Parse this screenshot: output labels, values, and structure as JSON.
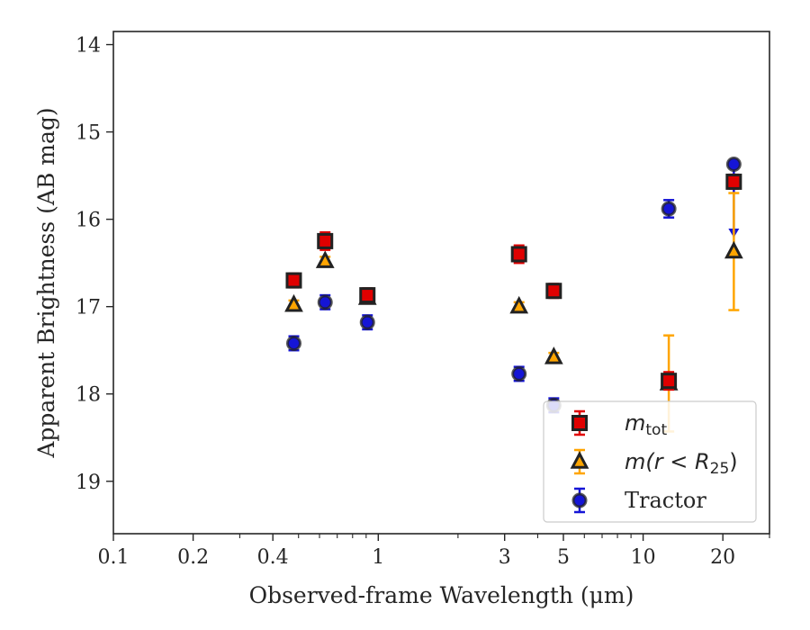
{
  "chart_data": {
    "type": "scatter",
    "title": "",
    "xlabel": "Observed-frame Wavelength (μm)",
    "ylabel": "Apparent Brightness (AB mag)",
    "xscale": "log",
    "xlim": [
      0.1,
      30
    ],
    "ylim": [
      19.6,
      13.85
    ],
    "y_inverted": true,
    "xticks": [
      0.1,
      0.2,
      0.4,
      1,
      3,
      5,
      10,
      20
    ],
    "xtick_labels": [
      "0.1",
      "0.2",
      "0.4",
      "1",
      "3",
      "5",
      "10",
      "20"
    ],
    "yticks": [
      14,
      15,
      16,
      17,
      18,
      19
    ],
    "ytick_labels": [
      "14",
      "15",
      "16",
      "17",
      "18",
      "19"
    ],
    "legend_position": "lower-right",
    "series": [
      {
        "name": "m_tot",
        "legend_parts": [
          "m",
          "tot"
        ],
        "marker": "square",
        "face_color": "#e00000",
        "edge_color": "#222222",
        "error_color": "#e00000",
        "points": [
          {
            "x": 0.48,
            "y": 16.7,
            "err": 0.08
          },
          {
            "x": 0.63,
            "y": 16.25,
            "err": 0.1
          },
          {
            "x": 0.91,
            "y": 16.87,
            "err": 0.08
          },
          {
            "x": 3.4,
            "y": 16.4,
            "err": 0.1
          },
          {
            "x": 4.6,
            "y": 16.82,
            "err": 0.08
          },
          {
            "x": 12.5,
            "y": 17.85,
            "err": 0.1
          },
          {
            "x": 22.0,
            "y": 15.57,
            "err": 0.08
          }
        ]
      },
      {
        "name": "m(r < R25)",
        "legend_parts": [
          "m(r < R",
          "25",
          ")"
        ],
        "marker": "triangle",
        "face_color": "#ffa500",
        "edge_color": "#222222",
        "error_color": "#ffa500",
        "points": [
          {
            "x": 0.48,
            "y": 16.98,
            "err": 0.05
          },
          {
            "x": 0.63,
            "y": 16.48,
            "err": 0.05
          },
          {
            "x": 0.91,
            "y": 16.9,
            "err": 0.05
          },
          {
            "x": 3.4,
            "y": 17.0,
            "err": 0.05
          },
          {
            "x": 4.6,
            "y": 17.58,
            "err": 0.05
          },
          {
            "x": 12.5,
            "y": 17.88,
            "err": 0.55
          },
          {
            "x": 22.0,
            "y": 16.37,
            "err": 0.67
          }
        ]
      },
      {
        "name": "Tractor",
        "legend_parts": [
          "Tractor"
        ],
        "marker": "circle",
        "face_color": "#1515d6",
        "edge_color": "#222222",
        "error_color": "#1515d6",
        "points": [
          {
            "x": 0.48,
            "y": 17.42,
            "err": 0.08
          },
          {
            "x": 0.63,
            "y": 16.95,
            "err": 0.08
          },
          {
            "x": 0.91,
            "y": 17.18,
            "err": 0.08
          },
          {
            "x": 3.4,
            "y": 17.77,
            "err": 0.08
          },
          {
            "x": 4.6,
            "y": 18.13,
            "err": 0.08
          },
          {
            "x": 12.5,
            "y": 15.88,
            "err": 0.1
          },
          {
            "x": 22.0,
            "y": 15.37,
            "err": 0.05,
            "upper_limit_to": 16.2
          }
        ]
      }
    ]
  }
}
